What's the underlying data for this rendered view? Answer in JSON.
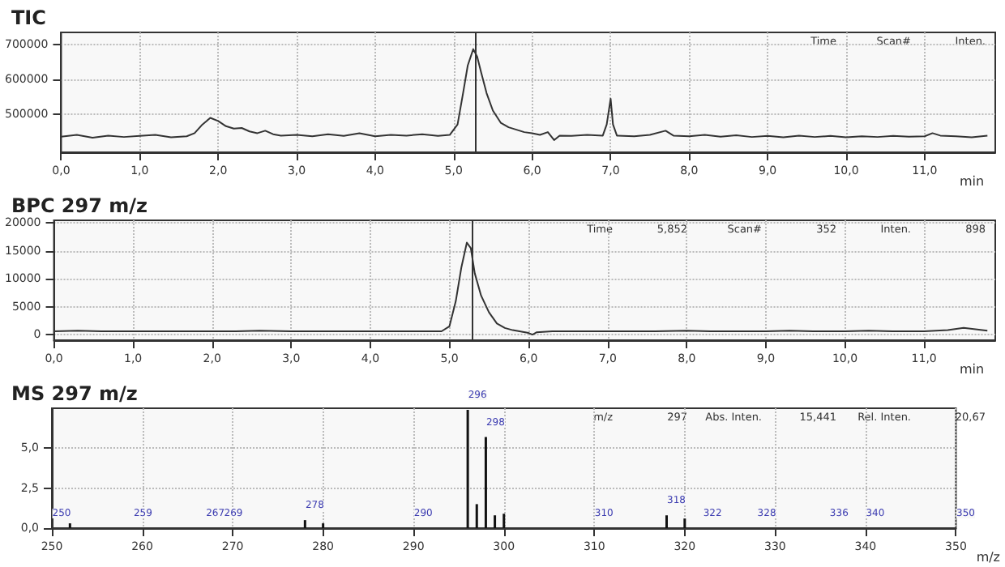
{
  "chart_data": [
    {
      "type": "line",
      "title": "TIC",
      "xlabel": "min",
      "marker": "none",
      "grid": true,
      "color": "#333333",
      "x": [
        0,
        0.2,
        0.4,
        0.6,
        0.8,
        1.0,
        1.2,
        1.4,
        1.6,
        1.7,
        1.8,
        1.9,
        2.0,
        2.1,
        2.2,
        2.3,
        2.4,
        2.5,
        2.6,
        2.7,
        2.8,
        3.0,
        3.2,
        3.4,
        3.6,
        3.8,
        4.0,
        4.2,
        4.4,
        4.6,
        4.8,
        4.95,
        5.05,
        5.12,
        5.18,
        5.25,
        5.3,
        5.35,
        5.42,
        5.5,
        5.6,
        5.7,
        5.8,
        5.9,
        6.0,
        6.1,
        6.2,
        6.28,
        6.35,
        6.5,
        6.7,
        6.9,
        6.95,
        7.0,
        7.03,
        7.08,
        7.3,
        7.5,
        7.7,
        7.8,
        8.0,
        8.2,
        8.4,
        8.6,
        8.8,
        9.0,
        9.2,
        9.4,
        9.6,
        9.8,
        10.0,
        10.2,
        10.4,
        10.6,
        10.8,
        11.0,
        11.1,
        11.2,
        11.4,
        11.6,
        11.8
      ],
      "values": [
        435000,
        440000,
        432000,
        438000,
        434000,
        437000,
        440000,
        433000,
        436000,
        445000,
        470000,
        489000,
        480000,
        465000,
        458000,
        460000,
        450000,
        445000,
        452000,
        442000,
        438000,
        440000,
        436000,
        442000,
        437000,
        445000,
        436000,
        440000,
        438000,
        442000,
        437000,
        440000,
        470000,
        560000,
        640000,
        687000,
        665000,
        620000,
        560000,
        510000,
        475000,
        462000,
        455000,
        448000,
        445000,
        440000,
        448000,
        425000,
        438000,
        437000,
        440000,
        438000,
        470000,
        544000,
        470000,
        438000,
        436000,
        440000,
        452000,
        438000,
        436000,
        440000,
        435000,
        439000,
        434000,
        437000,
        433000,
        438000,
        434000,
        437000,
        433000,
        436000,
        434000,
        437000,
        435000,
        436000,
        445000,
        438000,
        436000,
        433000,
        438000
      ],
      "xlim": [
        0,
        11.9
      ],
      "xticks": [
        {
          "value": 0,
          "label": "0,0"
        },
        {
          "value": 1,
          "label": "1,0"
        },
        {
          "value": 2,
          "label": "2,0"
        },
        {
          "value": 3,
          "label": "3,0"
        },
        {
          "value": 4,
          "label": "4,0"
        },
        {
          "value": 5,
          "label": "5,0"
        },
        {
          "value": 6,
          "label": "6,0"
        },
        {
          "value": 7,
          "label": "7,0"
        },
        {
          "value": 8,
          "label": "8,0"
        },
        {
          "value": 9,
          "label": "9,0"
        },
        {
          "value": 10,
          "label": "10,0"
        },
        {
          "value": 11,
          "label": "11,0"
        }
      ],
      "ylim": [
        390000,
        735000
      ],
      "yticks": [
        500000,
        600000,
        700000
      ],
      "ref_lines": [
        {
          "axis": "x",
          "value": 5.28,
          "color": "#333333"
        }
      ],
      "annotations": [
        "Time",
        "Scan#",
        "Inten."
      ]
    },
    {
      "type": "line",
      "title": "BPC 297 m/z",
      "xlabel": "min",
      "marker": "none",
      "grid": true,
      "color": "#333333",
      "x": [
        0,
        0.3,
        0.6,
        1.0,
        1.3,
        1.6,
        2.0,
        2.3,
        2.6,
        3.0,
        3.3,
        3.6,
        4.0,
        4.3,
        4.6,
        4.9,
        5.0,
        5.08,
        5.15,
        5.22,
        5.27,
        5.32,
        5.4,
        5.5,
        5.6,
        5.7,
        5.8,
        6.0,
        6.05,
        6.1,
        6.3,
        6.6,
        7.0,
        7.3,
        7.6,
        8.0,
        8.3,
        8.6,
        9.0,
        9.3,
        9.6,
        10.0,
        10.3,
        10.6,
        11.0,
        11.3,
        11.5,
        11.8
      ],
      "values": [
        600,
        700,
        600,
        600,
        600,
        600,
        600,
        600,
        700,
        600,
        600,
        600,
        600,
        600,
        600,
        600,
        1500,
        6000,
        12000,
        16500,
        15500,
        11000,
        7000,
        4000,
        2000,
        1200,
        800,
        300,
        0,
        400,
        600,
        600,
        600,
        600,
        600,
        700,
        600,
        600,
        600,
        700,
        600,
        600,
        700,
        600,
        600,
        800,
        1200,
        700
      ],
      "xlim": [
        0,
        11.9
      ],
      "xticks": [
        {
          "value": 0,
          "label": "0,0"
        },
        {
          "value": 1,
          "label": "1,0"
        },
        {
          "value": 2,
          "label": "2,0"
        },
        {
          "value": 3,
          "label": "3,0"
        },
        {
          "value": 4,
          "label": "4,0"
        },
        {
          "value": 5,
          "label": "5,0"
        },
        {
          "value": 6,
          "label": "6,0"
        },
        {
          "value": 7,
          "label": "7,0"
        },
        {
          "value": 8,
          "label": "8,0"
        },
        {
          "value": 9,
          "label": "9,0"
        },
        {
          "value": 10,
          "label": "10,0"
        },
        {
          "value": 11,
          "label": "11,0"
        }
      ],
      "ylim": [
        -1000,
        20500
      ],
      "yticks": [
        0,
        5000,
        10000,
        15000,
        20000
      ],
      "ref_lines": [
        {
          "axis": "x",
          "value": 5.28,
          "color": "#333333"
        }
      ],
      "annotations": [
        "Time",
        "5,852",
        "Scan#",
        "352",
        "Inten.",
        "898"
      ]
    },
    {
      "type": "bar",
      "title": "MS 297 m/z",
      "xlabel": "m/z",
      "grid": true,
      "color": "#111111",
      "x": [
        250,
        252,
        259,
        267,
        269,
        278,
        280,
        290,
        296,
        297,
        298,
        299,
        300,
        310,
        318,
        320,
        322,
        328,
        336,
        340,
        350
      ],
      "values": [
        0,
        0.3,
        0,
        0,
        0,
        0.5,
        0.3,
        0,
        7.4,
        1.5,
        5.7,
        0.8,
        0.9,
        0,
        0.8,
        0.6,
        0,
        0,
        0,
        0,
        0
      ],
      "xlim": [
        250,
        350
      ],
      "xticks": [
        250,
        260,
        270,
        280,
        290,
        300,
        310,
        320,
        330,
        340,
        350
      ],
      "ylim": [
        0,
        7.5
      ],
      "yticks": [
        {
          "value": 0,
          "label": "0,0"
        },
        {
          "value": 2.5,
          "label": "2,5"
        },
        {
          "value": 5,
          "label": "5,0"
        }
      ],
      "annotations": [
        "m/z",
        "297",
        "Abs. Inten.",
        "15,441",
        "Rel. Inten.",
        "20,67",
        {
          "text": "250",
          "x": 250,
          "y": 0
        },
        {
          "text": "259",
          "x": 259,
          "y": 0
        },
        {
          "text": "267",
          "x": 267,
          "y": 0
        },
        {
          "text": "269",
          "x": 269,
          "y": 0
        },
        {
          "text": "278",
          "x": 278,
          "y": 0.5
        },
        {
          "text": "290",
          "x": 290,
          "y": 0
        },
        {
          "text": "296",
          "x": 296,
          "y": 7.4
        },
        {
          "text": "298",
          "x": 298,
          "y": 5.7
        },
        {
          "text": "310",
          "x": 310,
          "y": 0
        },
        {
          "text": "318",
          "x": 318,
          "y": 0.8
        },
        {
          "text": "322",
          "x": 322,
          "y": 0
        },
        {
          "text": "328",
          "x": 328,
          "y": 0
        },
        {
          "text": "336",
          "x": 336,
          "y": 0
        },
        {
          "text": "340",
          "x": 340,
          "y": 0
        },
        {
          "text": "350",
          "x": 350,
          "y": 0
        }
      ]
    }
  ]
}
